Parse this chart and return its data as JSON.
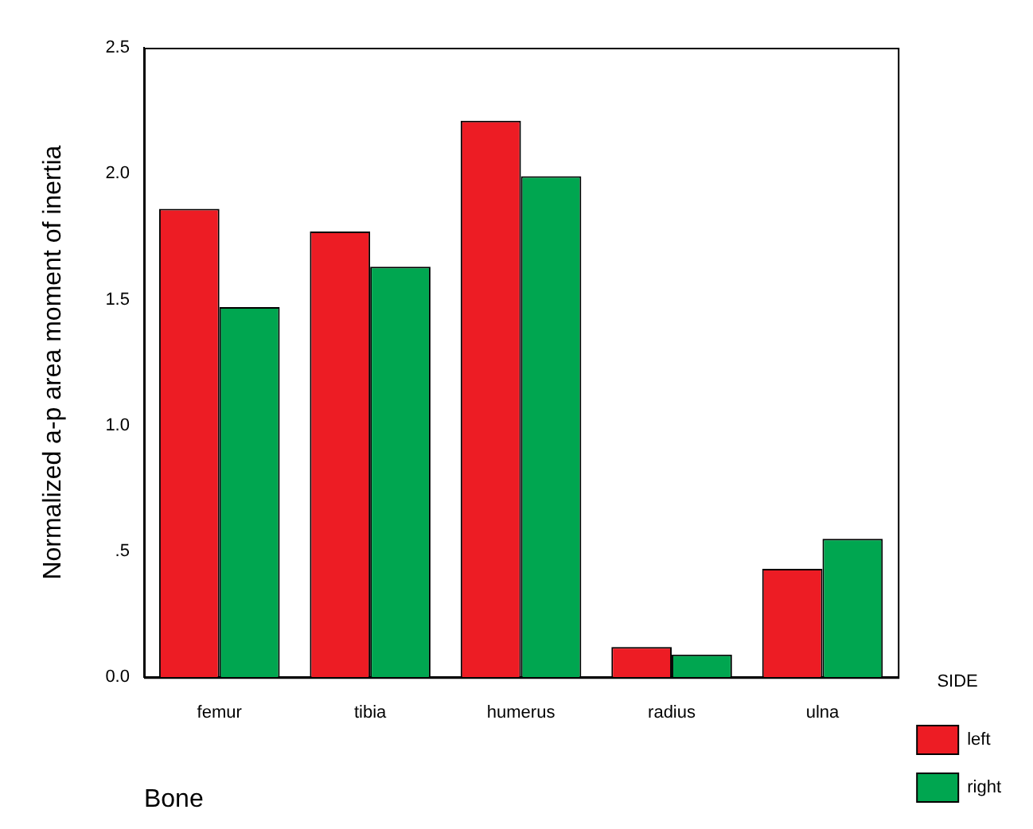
{
  "chart_data": {
    "type": "bar",
    "xlabel": "Bone",
    "ylabel": "Normalized a-p area moment of inertia",
    "legend_title": "SIDE",
    "categories": [
      "femur",
      "tibia",
      "humerus",
      "radius",
      "ulna"
    ],
    "series": [
      {
        "name": "left",
        "color": "#ed1c24",
        "values": [
          1.86,
          1.77,
          2.21,
          0.12,
          0.43
        ]
      },
      {
        "name": "right",
        "color": "#00a650",
        "values": [
          1.47,
          1.63,
          1.99,
          0.09,
          0.55
        ]
      }
    ],
    "ylim": [
      0,
      2.5
    ],
    "yticks": [
      {
        "value": 0,
        "label": "0.0"
      },
      {
        "value": 0.5,
        "label": ".5"
      },
      {
        "value": 1,
        "label": "1.0"
      },
      {
        "value": 1.5,
        "label": "1.5"
      },
      {
        "value": 2,
        "label": "2.0"
      },
      {
        "value": 2.5,
        "label": "2.5"
      }
    ],
    "grid": false,
    "legend": "right"
  }
}
